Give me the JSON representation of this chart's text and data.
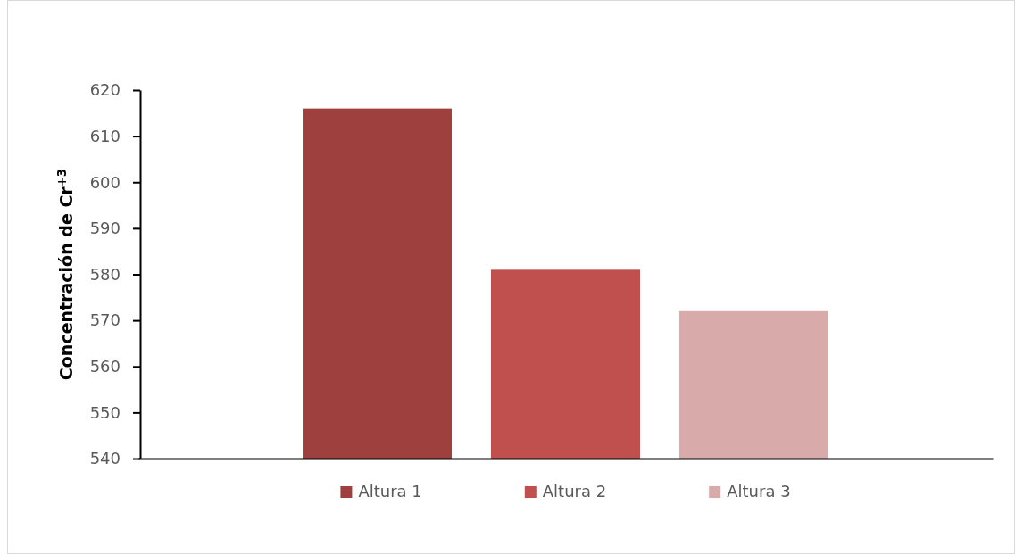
{
  "chart_data": {
    "type": "bar",
    "ylabel": "Concentración de Cr$^{+3}$",
    "categories": [
      null
    ],
    "series": [
      {
        "name": "Altura 1",
        "color": "#9d403e",
        "values": [
          616
        ]
      },
      {
        "name": "Altura 2",
        "color": "#c0504d",
        "values": [
          581
        ]
      },
      {
        "name": "Altura 3",
        "color": "#d9aaaa",
        "values": [
          572
        ]
      }
    ],
    "ylim": [
      540,
      620
    ],
    "yticks": [
      540,
      550,
      560,
      570,
      580,
      590,
      600,
      610,
      620
    ],
    "grid": false,
    "legend": "bottom"
  }
}
